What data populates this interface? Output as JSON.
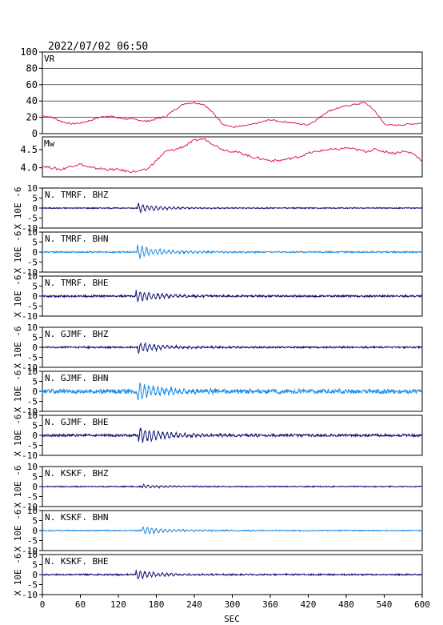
{
  "header": {
    "datetime": "2022/07/02 06:50"
  },
  "colors": {
    "vr_mw": "#e0204a",
    "dark": "#141478",
    "light": "#1e8ce6",
    "frame": "#000000",
    "grid": "#000000"
  },
  "chart_data": {
    "type": "line",
    "xlabel": "SEC",
    "xlim": [
      0,
      600
    ],
    "xticks": [
      0,
      60,
      120,
      180,
      240,
      300,
      360,
      420,
      480,
      540,
      600
    ],
    "panels": [
      {
        "label": "VR",
        "ylim": [
          0,
          100
        ],
        "yticks": [
          0,
          20,
          40,
          60,
          80,
          100
        ],
        "grid": true,
        "color": "vr_mw",
        "x": [
          0,
          15,
          30,
          45,
          60,
          75,
          90,
          105,
          120,
          135,
          150,
          165,
          180,
          195,
          210,
          225,
          240,
          255,
          270,
          285,
          300,
          315,
          330,
          345,
          360,
          375,
          390,
          405,
          420,
          435,
          450,
          465,
          480,
          495,
          510,
          525,
          540,
          555,
          570,
          585,
          600
        ],
        "y": [
          22,
          20,
          15,
          12,
          13,
          16,
          20,
          22,
          19,
          18,
          17,
          15,
          18,
          21,
          30,
          37,
          38,
          36,
          25,
          12,
          8,
          9,
          11,
          14,
          17,
          15,
          14,
          12,
          11,
          18,
          27,
          31,
          34,
          36,
          38,
          28,
          12,
          10,
          11,
          12,
          13
        ]
      },
      {
        "label": "Mw",
        "ylim": [
          3.75,
          4.85
        ],
        "yticks": [
          4.0,
          4.5
        ],
        "yticklabels": [
          "4.0",
          "4.5"
        ],
        "grid": false,
        "color": "vr_mw",
        "x": [
          0,
          15,
          30,
          45,
          60,
          75,
          90,
          105,
          120,
          135,
          150,
          165,
          180,
          195,
          210,
          225,
          240,
          255,
          270,
          285,
          300,
          315,
          330,
          345,
          360,
          375,
          390,
          405,
          420,
          435,
          450,
          465,
          480,
          495,
          510,
          525,
          540,
          555,
          570,
          585,
          600
        ],
        "y": [
          4.05,
          4.0,
          3.95,
          4.05,
          4.1,
          4.0,
          3.98,
          3.95,
          3.95,
          3.9,
          3.9,
          3.95,
          4.2,
          4.45,
          4.5,
          4.6,
          4.75,
          4.8,
          4.65,
          4.5,
          4.45,
          4.4,
          4.3,
          4.25,
          4.2,
          4.2,
          4.25,
          4.3,
          4.4,
          4.45,
          4.5,
          4.5,
          4.55,
          4.5,
          4.45,
          4.5,
          4.45,
          4.4,
          4.45,
          4.4,
          4.2
        ]
      }
    ],
    "waveforms": {
      "ylim": [
        -10,
        10
      ],
      "yticks": [
        -10,
        -5,
        0,
        5,
        10
      ],
      "ylabel": "X 10E -6",
      "traces": [
        {
          "label": "N. TMRF. BHZ",
          "color": "dark",
          "arrival": 150,
          "peak": 2.0,
          "noise": 0.25
        },
        {
          "label": "N. TMRF. BHN",
          "color": "light",
          "arrival": 150,
          "peak": 3.0,
          "noise": 0.35
        },
        {
          "label": "N. TMRF. BHE",
          "color": "dark",
          "arrival": 148,
          "peak": 3.0,
          "noise": 0.45
        },
        {
          "label": "N. GJMF. BHZ",
          "color": "dark",
          "arrival": 150,
          "peak": 2.5,
          "noise": 0.4
        },
        {
          "label": "N. GJMF. BHN",
          "color": "light",
          "arrival": 150,
          "peak": 4.5,
          "noise": 1.1
        },
        {
          "label": "N. GJMF. BHE",
          "color": "dark",
          "arrival": 152,
          "peak": 4.0,
          "noise": 0.6
        },
        {
          "label": "N. KSKF. BHZ",
          "color": "dark",
          "arrival": 158,
          "peak": 0.8,
          "noise": 0.25
        },
        {
          "label": "N. KSKF. BHN",
          "color": "light",
          "arrival": 158,
          "peak": 2.0,
          "noise": 0.25
        },
        {
          "label": "N. KSKF. BHE",
          "color": "dark",
          "arrival": 148,
          "peak": 2.0,
          "noise": 0.35
        }
      ]
    }
  }
}
